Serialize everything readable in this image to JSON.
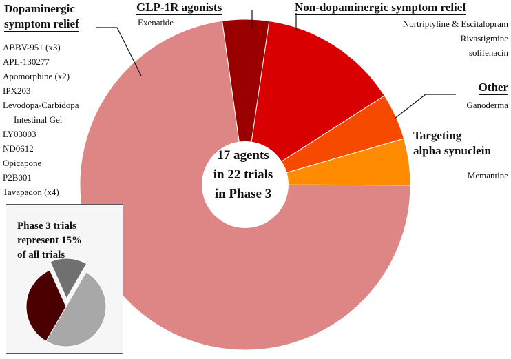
{
  "chart_data": [
    {
      "type": "pie",
      "subtype": "donut",
      "center_text": [
        "17 agents",
        "in 22 trials",
        "in Phase 3"
      ],
      "slices": [
        {
          "name": "GLP-1R agonists",
          "value": 1,
          "color": "#9b0000"
        },
        {
          "name": "Non-dopaminergic symptom relief",
          "value": 3,
          "color": "#d80000"
        },
        {
          "name": "Other",
          "value": 1,
          "color": "#f54a00"
        },
        {
          "name": "Targeting alpha synuclein",
          "value": 1,
          "color": "#ff8c00"
        },
        {
          "name": "Dopaminergic symptom relief",
          "value": 16,
          "color": "#de8585"
        }
      ]
    },
    {
      "type": "pie",
      "title": [
        "Phase 3 trials",
        "represent 15%",
        "of all trials"
      ],
      "slices": [
        {
          "value": 15,
          "color": "#707070"
        },
        {
          "value": 35,
          "color": "#4a0000"
        },
        {
          "value": 50,
          "color": "#a8a8a8"
        }
      ]
    }
  ],
  "annotations": {
    "dopaminergic": {
      "heading": [
        "Dopaminergic",
        "symptom relief"
      ],
      "agents": [
        "ABBV-951 (x3)",
        "APL-130277",
        "Apomorphine (x2)",
        "IPX203",
        "Levodopa-Carbidopa",
        "Intestinal Gel",
        "LY03003",
        "ND0612",
        "Opicapone",
        "P2B001",
        "Tavapadon (x4)"
      ]
    },
    "glp1": {
      "heading": "GLP-1R agonists",
      "agents": [
        "Exenatide"
      ]
    },
    "nondopaminergic": {
      "heading": "Non-dopaminergic symptom relief",
      "agents": [
        "Nortriptyline & Escitalopram",
        "Rivastigmine",
        "solifenacin"
      ]
    },
    "other": {
      "heading": "Other",
      "agents": [
        "Ganoderma"
      ]
    },
    "alpha": {
      "heading": [
        "Targeting",
        "alpha synuclein"
      ],
      "agents": [
        "Memantine"
      ]
    }
  }
}
